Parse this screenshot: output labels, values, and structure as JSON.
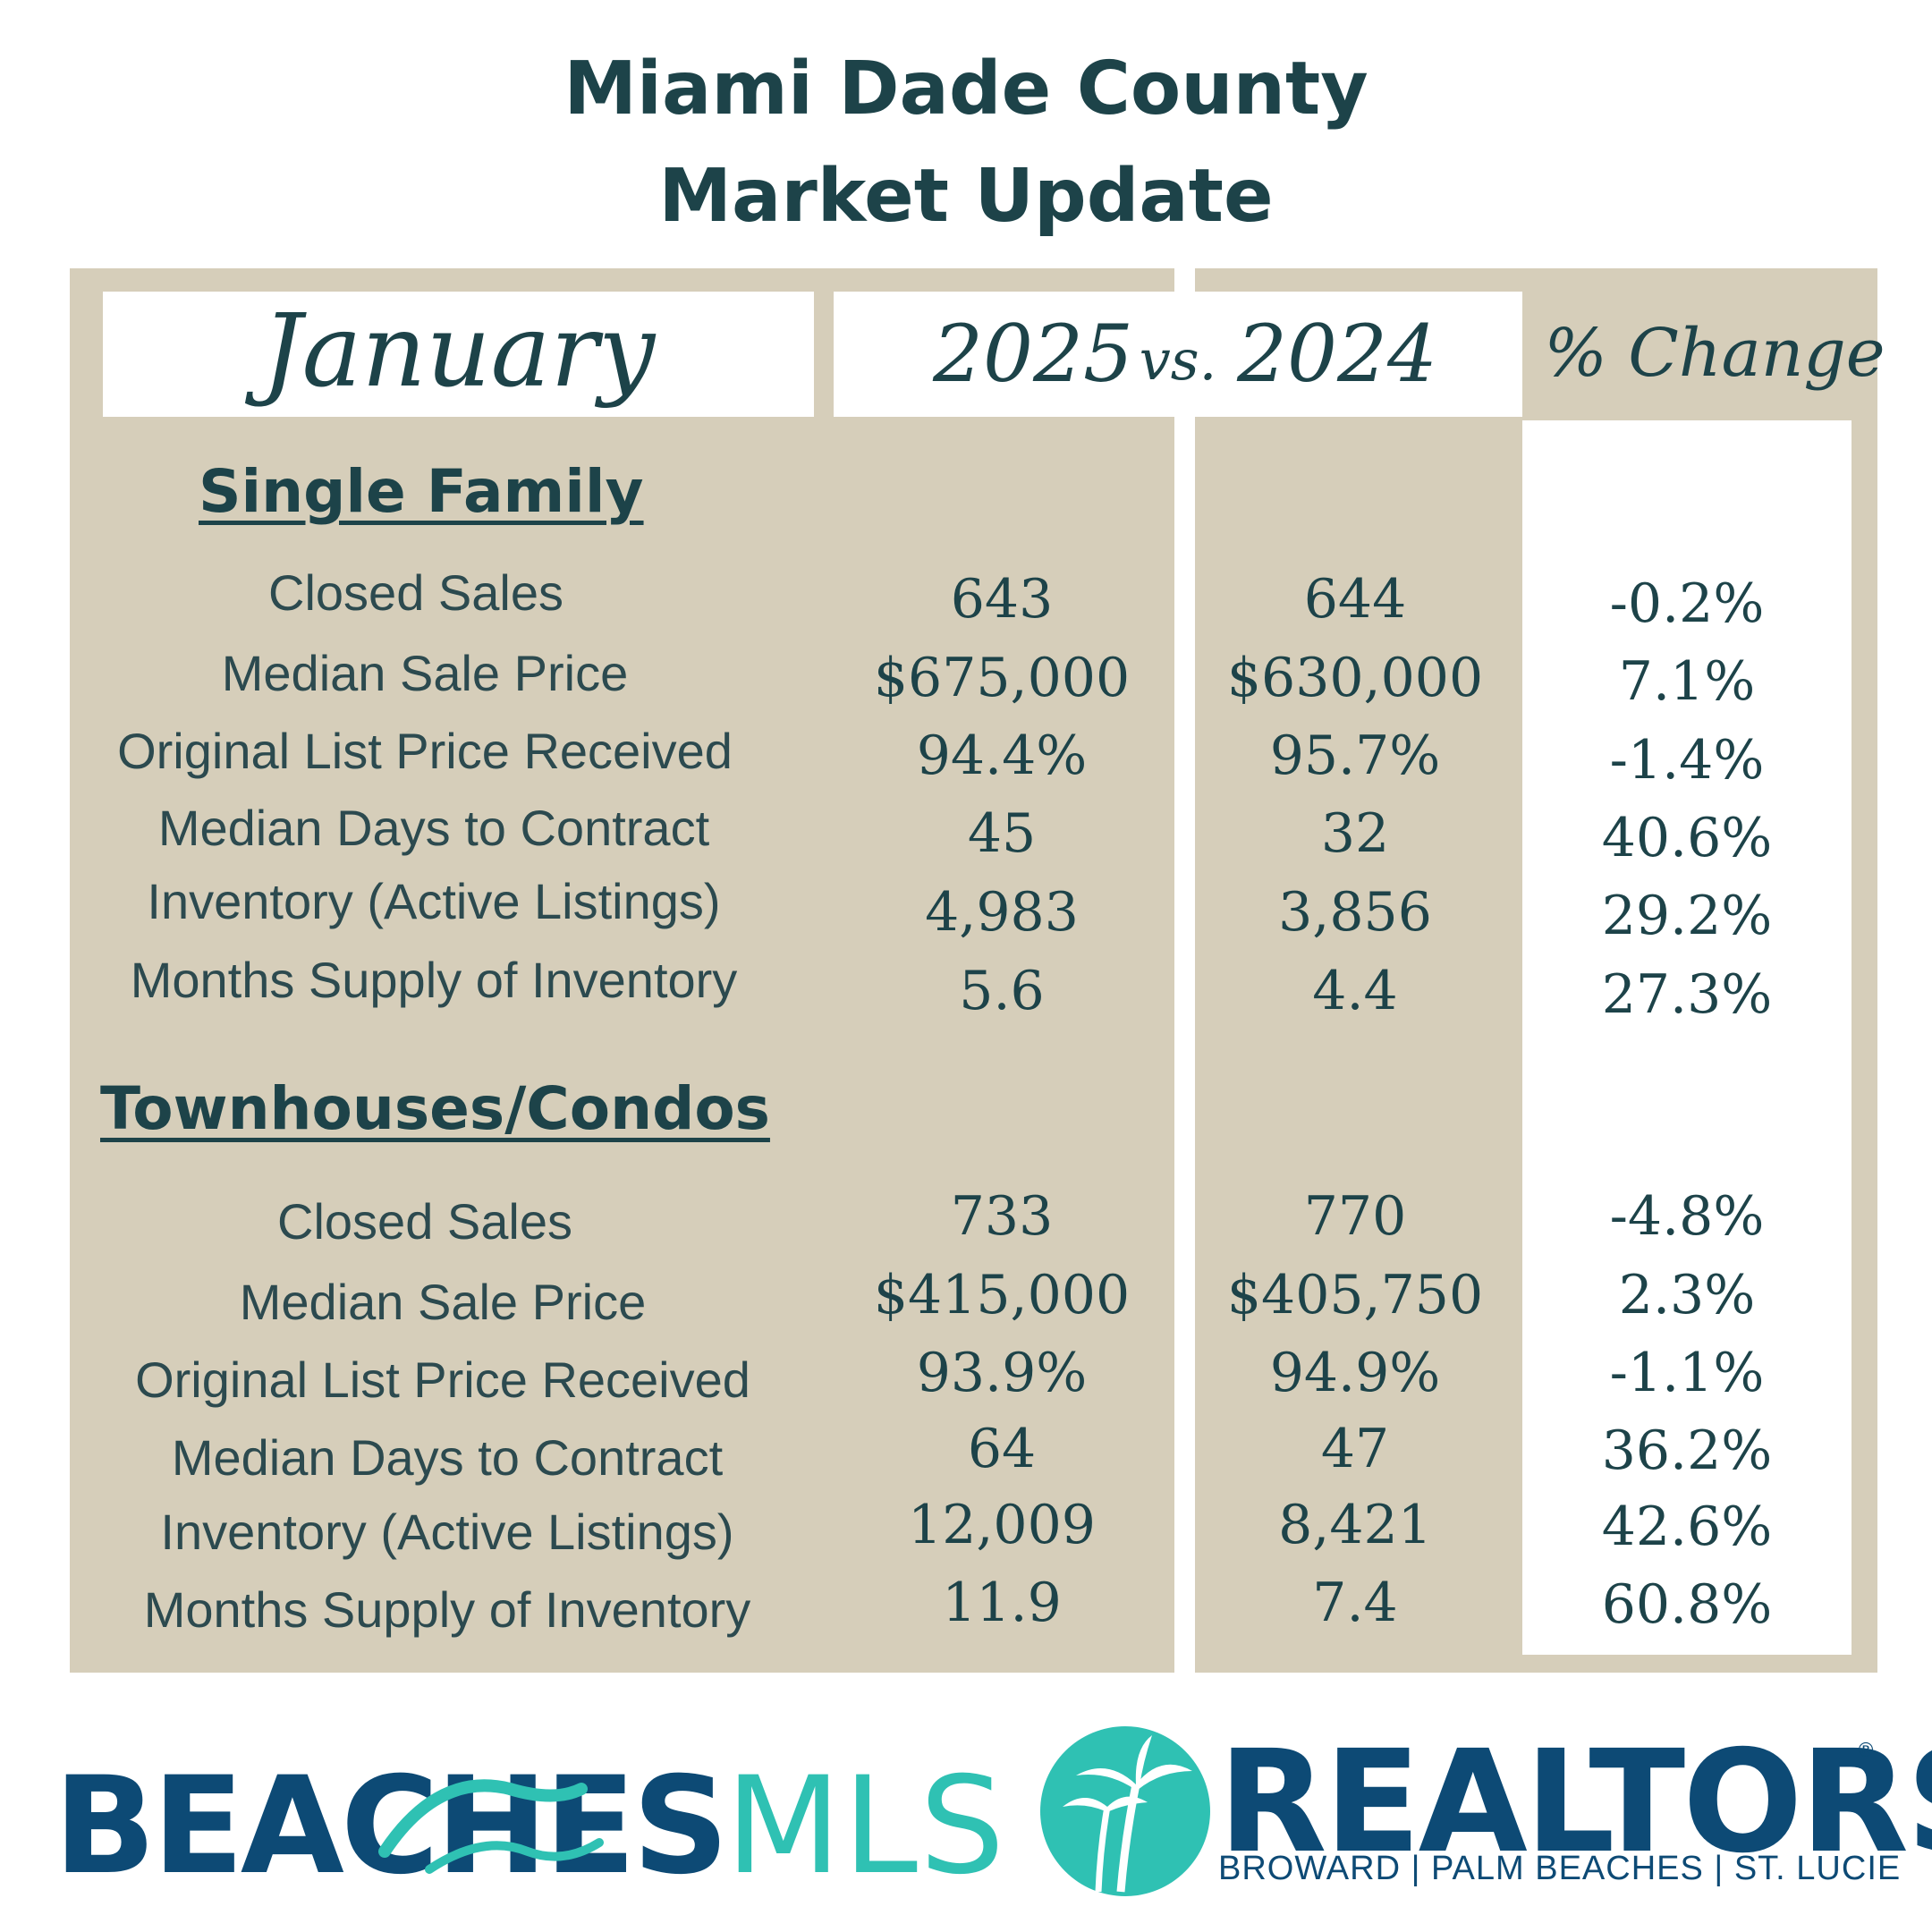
{
  "title": {
    "line1": "Miami Dade County",
    "line2": "Market Update"
  },
  "header": {
    "month": "January",
    "year_current": "2025",
    "vs": "vs.",
    "year_prior": "2024",
    "pct_change": "% Change"
  },
  "sections": [
    {
      "name": "Single Family",
      "rows": [
        {
          "label": "Closed Sales",
          "current": "643",
          "prior": "644",
          "change": "-0.2%"
        },
        {
          "label": "Median Sale Price",
          "current": "$675,000",
          "prior": "$630,000",
          "change": "7.1%"
        },
        {
          "label": "Original List Price Received",
          "current": "94.4%",
          "prior": "95.7%",
          "change": "-1.4%"
        },
        {
          "label": "Median Days to Contract",
          "current": "45",
          "prior": "32",
          "change": "40.6%"
        },
        {
          "label": "Inventory (Active Listings)",
          "current": "4,983",
          "prior": "3,856",
          "change": "29.2%"
        },
        {
          "label": "Months Supply of Inventory",
          "current": "5.6",
          "prior": "4.4",
          "change": "27.3%"
        }
      ]
    },
    {
      "name": "Townhouses/Condos",
      "rows": [
        {
          "label": "Closed Sales",
          "current": "733",
          "prior": "770",
          "change": "-4.8%"
        },
        {
          "label": "Median Sale Price",
          "current": "$415,000",
          "prior": "$405,750",
          "change": "2.3%"
        },
        {
          "label": "Original List Price Received",
          "current": "93.9%",
          "prior": "94.9%",
          "change": "-1.1%"
        },
        {
          "label": "Median Days to Contract",
          "current": "64",
          "prior": "47",
          "change": "36.2%"
        },
        {
          "label": "Inventory (Active Listings)",
          "current": "12,009",
          "prior": "8,421",
          "change": "42.6%"
        },
        {
          "label": "Months Supply of Inventory",
          "current": "11.9",
          "prior": "7.4",
          "change": "60.8%"
        }
      ]
    }
  ],
  "logos": {
    "beaches_bold": "BEACHES",
    "beaches_light": "MLS",
    "realtors": "REALTORS",
    "realtors_mark": "®",
    "realtors_sub": "BROWARD | PALM BEACHES | ST. LUCIE"
  },
  "colors": {
    "panel": "#d6ceba",
    "text": "#1d4349",
    "navy": "#0d4a75",
    "teal": "#2fc1b3"
  }
}
